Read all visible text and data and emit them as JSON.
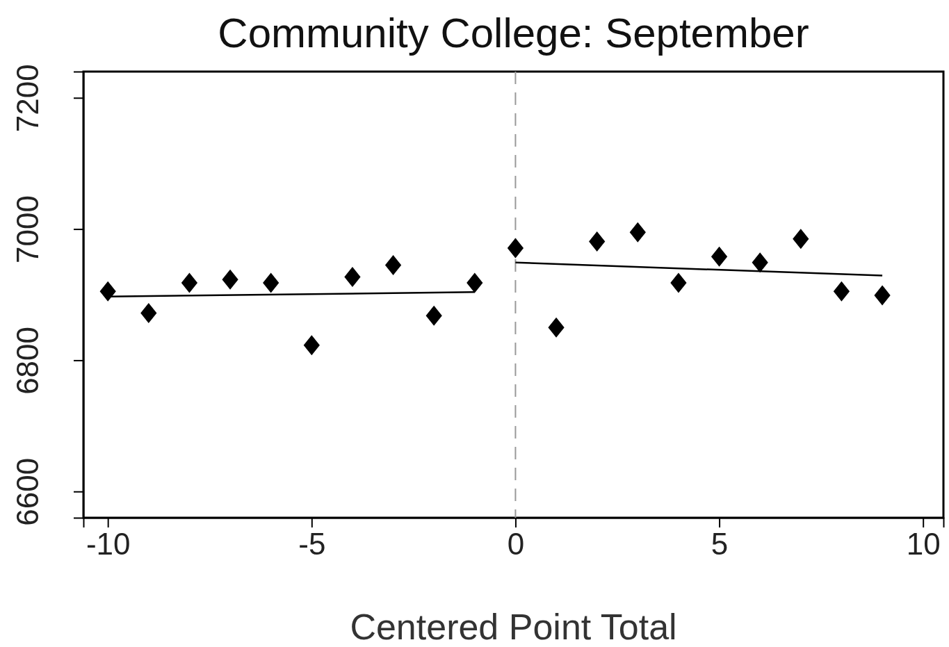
{
  "chart_data": {
    "type": "scatter",
    "title": "Community College: September",
    "xlabel": "Centered Point Total",
    "xlim": [
      -10.6,
      10.5
    ],
    "ylim": [
      6560,
      7240
    ],
    "xticks": [
      -10,
      -5,
      0,
      5,
      10
    ],
    "yticks": [
      6600,
      6800,
      7000,
      7200
    ],
    "marker": "diamond",
    "grid": false,
    "series": [
      {
        "type": "scatter",
        "color": "#000000",
        "x": [
          -10,
          -9,
          -8,
          -7,
          -6,
          -5,
          -4,
          -3,
          -2,
          -1,
          0,
          1,
          2,
          3,
          4,
          5,
          6,
          7,
          8,
          9
        ],
        "values": [
          6905,
          6872,
          6918,
          6923,
          6918,
          6823,
          6927,
          6945,
          6868,
          6918,
          6971,
          6850,
          6981,
          6995,
          6918,
          6958,
          6949,
          6985,
          6905,
          6899
        ]
      },
      {
        "type": "line",
        "color": "#000000",
        "marker": "none",
        "line_style": "solid",
        "x": [
          -10,
          -1
        ],
        "values": [
          6897,
          6904
        ]
      },
      {
        "type": "line",
        "color": "#000000",
        "marker": "none",
        "line_style": "solid",
        "x": [
          0,
          9
        ],
        "values": [
          6949,
          6929
        ]
      }
    ],
    "ref_lines": [
      {
        "axis": "x",
        "value": 0,
        "color": "#999999",
        "line_style": "dashed"
      }
    ]
  }
}
